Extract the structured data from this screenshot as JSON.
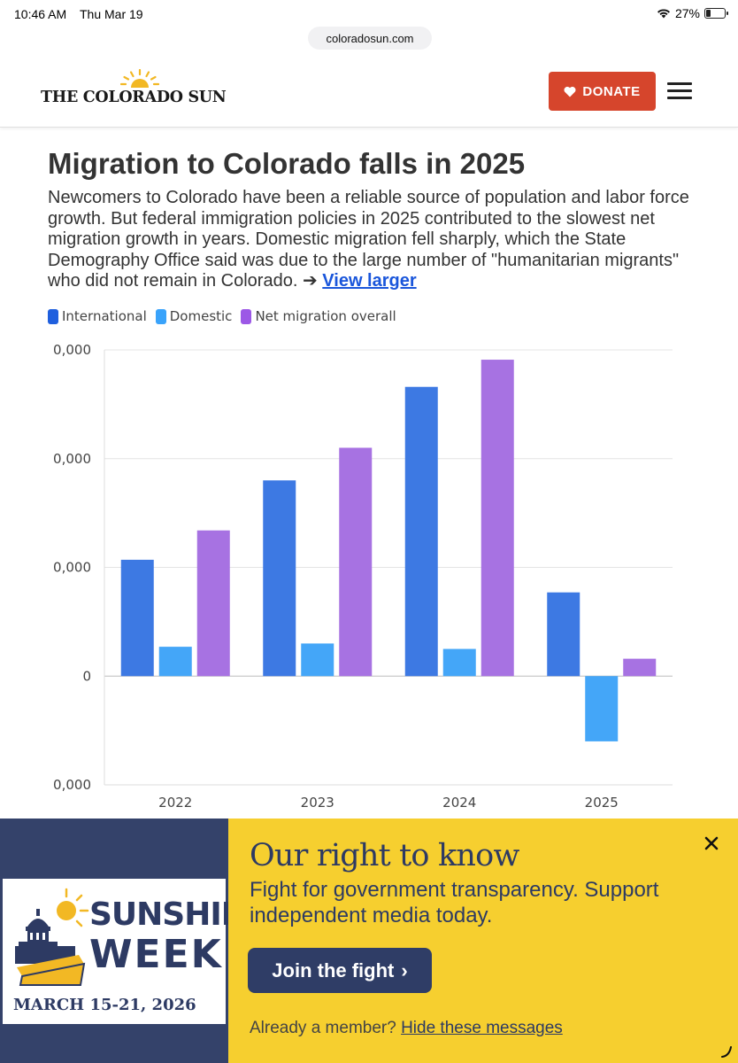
{
  "status_bar": {
    "time": "10:46 AM",
    "date": "Thu Mar 19",
    "battery": "27%",
    "battery_level": 0.27
  },
  "browser": {
    "url": "coloradosun.com"
  },
  "header": {
    "logo_text": "THE COLORADO SUN",
    "donate_label": "DONATE",
    "icons": {
      "donate": "heart-icon",
      "menu": "hamburger-menu-icon",
      "logo": "sun-icon"
    },
    "colors": {
      "donate_bg": "#d6452c",
      "sun": "#f2b824"
    }
  },
  "article": {
    "headline": "Migration to Colorado falls in 2025",
    "description": "Newcomers to Colorado have been a reliable source of population and labor force growth. But federal immigration policies in 2025 contributed to the slowest net migration growth in years. Domestic migration fell sharply, which the State Demography Office said was due to the large number of \"humanitarian migrants\" who did not remain in Colorado.",
    "view_larger_arrow": "➔",
    "view_larger_label": "View larger"
  },
  "chart_data": {
    "type": "bar",
    "categories": [
      "2022",
      "2023",
      "2024",
      "2025"
    ],
    "series": [
      {
        "name": "International",
        "color": "#3d79e3",
        "values": [
          10700,
          18000,
          26600,
          7700
        ]
      },
      {
        "name": "Domestic",
        "color": "#44a6f8",
        "values": [
          2700,
          3000,
          2500,
          -6000
        ]
      },
      {
        "name": "Net migration overall",
        "color": "#a772e2",
        "values": [
          13400,
          21000,
          29100,
          1600
        ]
      }
    ],
    "y_tick_labels": [
      "0,000",
      "0,000",
      "0,000",
      "0",
      "0,000"
    ],
    "y_ticks": [
      30000,
      20000,
      10000,
      0,
      -10000
    ],
    "ylim": [
      -10000,
      30000
    ],
    "grid": true,
    "title": "",
    "xlabel": "",
    "ylabel": ""
  },
  "banner": {
    "logo_line1": "SUNSHINE",
    "logo_registered": "®",
    "logo_line2": "WEEK",
    "logo_dates": "MARCH 15-21, 2026",
    "headline": "Our right to know",
    "subtext": "Fight for government transparency. Support independent media today.",
    "cta_label": "Join the fight",
    "cta_chevron": "›",
    "member_text": "Already a member?",
    "hide_link": "Hide these messages",
    "colors": {
      "left_bg": "#34426a",
      "right_bg": "#f6cf2f",
      "navy": "#2d3a63"
    }
  }
}
